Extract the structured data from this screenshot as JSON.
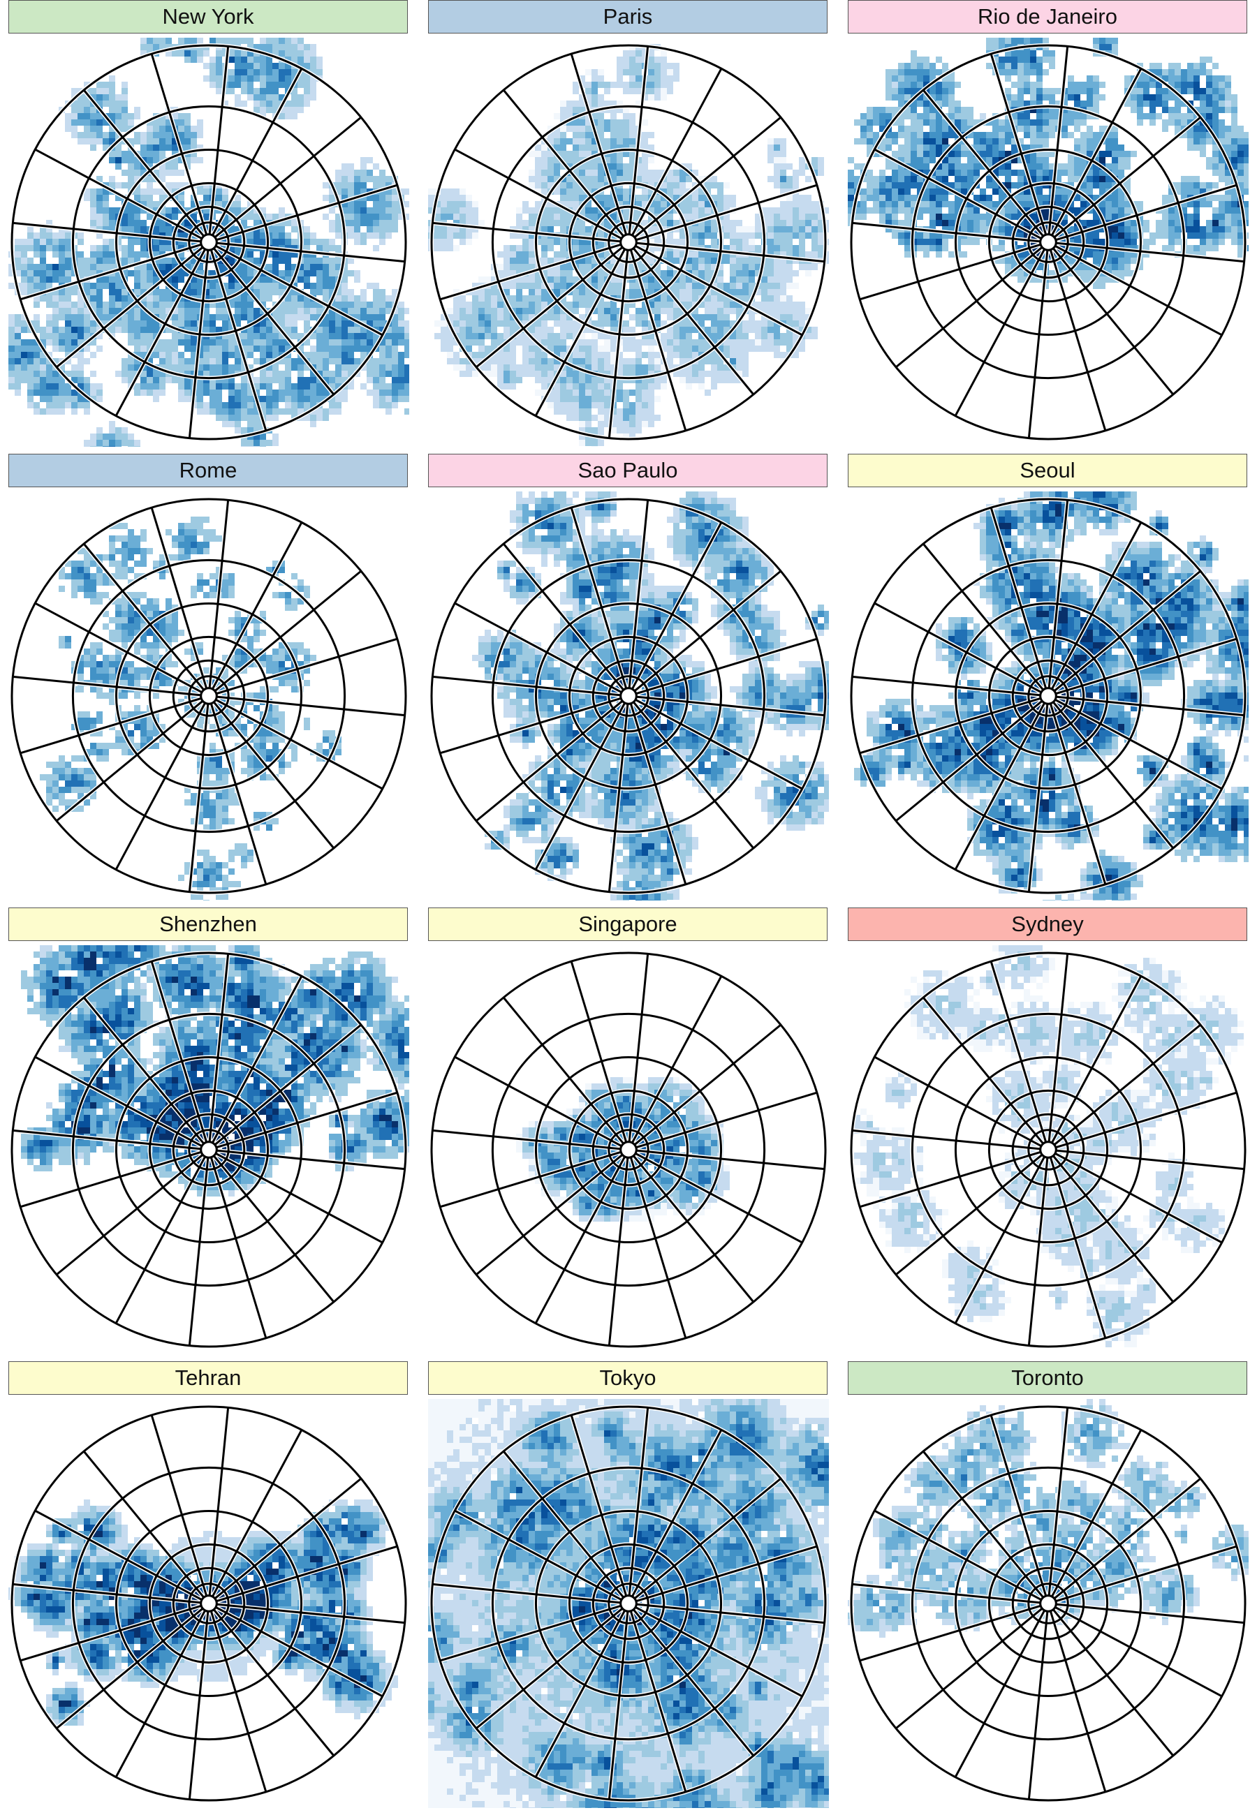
{
  "figure": {
    "colors": {
      "scale": [
        "#f2f7fc",
        "#c6dbef",
        "#9ecae1",
        "#6baed6",
        "#4292c6",
        "#2171b5",
        "#08519c",
        "#08306b"
      ],
      "grid": "#000000"
    },
    "grid": {
      "rings": 6,
      "sectors": 16
    },
    "panels": [
      {
        "title": "New York",
        "header_color": "#cce8c4",
        "seed": 11,
        "density": 0.55,
        "reach": 1.2,
        "intensity": 0.65,
        "shape": "patchy"
      },
      {
        "title": "Paris",
        "header_color": "#b3cde3",
        "seed": 23,
        "density": 0.6,
        "reach": 1.15,
        "intensity": 0.45,
        "shape": "ring"
      },
      {
        "title": "Rio de Janeiro",
        "header_color": "#fcd4e5",
        "seed": 37,
        "density": 0.45,
        "reach": 1.1,
        "intensity": 0.75,
        "shape": "upper"
      },
      {
        "title": "Rome",
        "header_color": "#b3cde3",
        "seed": 41,
        "density": 0.22,
        "reach": 0.9,
        "intensity": 0.6,
        "shape": "sparse"
      },
      {
        "title": "Sao Paulo",
        "header_color": "#fcd4e5",
        "seed": 53,
        "density": 0.6,
        "reach": 1.05,
        "intensity": 0.7,
        "shape": "patchy"
      },
      {
        "title": "Seoul",
        "header_color": "#fdfccd",
        "seed": 67,
        "density": 0.62,
        "reach": 1.2,
        "intensity": 0.85,
        "shape": "patchy"
      },
      {
        "title": "Shenzhen",
        "header_color": "#fdfccd",
        "seed": 71,
        "density": 0.55,
        "reach": 1.2,
        "intensity": 0.85,
        "shape": "upper"
      },
      {
        "title": "Singapore",
        "header_color": "#fdfccd",
        "seed": 83,
        "density": 0.8,
        "reach": 0.55,
        "intensity": 0.6,
        "shape": "core"
      },
      {
        "title": "Sydney",
        "header_color": "#fcb4ae",
        "seed": 97,
        "density": 0.45,
        "reach": 1.0,
        "intensity": 0.3,
        "shape": "patchy"
      },
      {
        "title": "Tehran",
        "header_color": "#fdfccd",
        "seed": 101,
        "density": 0.75,
        "reach": 0.75,
        "intensity": 0.85,
        "shape": "band"
      },
      {
        "title": "Tokyo",
        "header_color": "#fdfccd",
        "seed": 113,
        "density": 0.92,
        "reach": 1.3,
        "intensity": 0.7,
        "shape": "full"
      },
      {
        "title": "Toronto",
        "header_color": "#cce8c4",
        "seed": 127,
        "density": 0.35,
        "reach": 1.0,
        "intensity": 0.5,
        "shape": "upper"
      }
    ]
  }
}
